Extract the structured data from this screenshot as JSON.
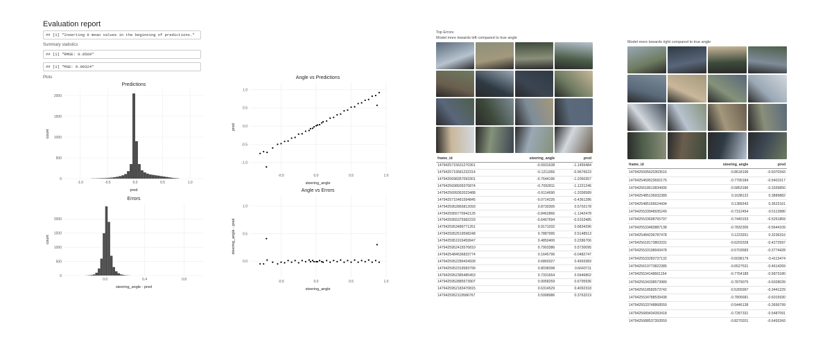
{
  "header": {
    "title": "Evaluation report"
  },
  "outputs": [
    "## [1] \"Inserting 0 mean values in the beginning of predictions.\"",
    "## [1] \"RMSE: 0.0569\"",
    "## [1] \"MSE: 0.00324\""
  ],
  "sections": {
    "summary": "Summary statistics",
    "plots": "Plots"
  },
  "charts": [
    {
      "type": "histogram",
      "title": "Predictions",
      "xlabel": "pred",
      "ylabel": "count",
      "color": "#4d4d4d",
      "xlim": [
        -1.3,
        1.25
      ],
      "ylim": [
        0,
        2150
      ],
      "xticks": [
        {
          "value": -1,
          "label": "-1.0"
        },
        -0.5,
        {
          "value": 0,
          "label": "0.0"
        },
        0.5,
        {
          "value": 1,
          "label": "1.0"
        }
      ],
      "yticks": [
        0,
        500,
        1000,
        1500,
        2000
      ],
      "bins": [
        -0.8,
        -0.75,
        -0.7,
        -0.65,
        -0.6,
        -0.55,
        -0.5,
        -0.45,
        -0.4,
        -0.35,
        -0.3,
        -0.25,
        -0.2,
        -0.15,
        -0.1,
        -0.05,
        0,
        0.05,
        0.1,
        0.15,
        0.2,
        0.25,
        0.3,
        0.35,
        0.4,
        0.45,
        0.5,
        0.55,
        0.6,
        0.65,
        0.7,
        0.75,
        0.8
      ],
      "counts": [
        5,
        5,
        8,
        10,
        12,
        15,
        20,
        25,
        35,
        45,
        60,
        80,
        110,
        180,
        350,
        2050,
        900,
        350,
        200,
        150,
        120,
        100,
        90,
        80,
        70,
        60,
        50,
        40,
        30,
        20,
        12,
        8
      ]
    },
    {
      "type": "histogram",
      "title": "Errors",
      "xlabel": "steering_angle - pred",
      "ylabel": "count",
      "color": "#4d4d4d",
      "xlim": [
        -0.42,
        1.0
      ],
      "ylim": [
        0,
        2550
      ],
      "xticks": [
        {
          "value": 0,
          "label": "0.0"
        },
        0.4,
        0.8
      ],
      "yticks": [
        0,
        500,
        1000,
        1500,
        2000
      ],
      "bins": [
        -0.2,
        -0.175,
        -0.15,
        -0.125,
        -0.1,
        -0.075,
        -0.05,
        -0.025,
        0,
        0.025,
        0.05,
        0.075,
        0.1,
        0.125,
        0.15,
        0.175,
        0.2,
        0.225,
        0.25
      ],
      "counts": [
        5,
        10,
        20,
        40,
        100,
        250,
        600,
        1500,
        2450,
        1900,
        700,
        300,
        150,
        80,
        40,
        20,
        10,
        5
      ]
    },
    {
      "type": "scatter",
      "title": "Angle vs Predictions",
      "xlabel": "steering_angle",
      "ylabel": "pred",
      "color": "#000000",
      "xlim": [
        -0.95,
        1.0
      ],
      "ylim": [
        -1.25,
        1.2
      ],
      "xticks": [
        -0.5,
        {
          "value": 0,
          "label": "0.0"
        },
        0.5,
        {
          "value": 1,
          "label": "1.0"
        }
      ],
      "yticks": [
        {
          "value": -1,
          "label": "-1.0"
        },
        -0.5,
        {
          "value": 0,
          "label": "0.0"
        },
        0.5,
        {
          "value": 1,
          "label": "1.0"
        }
      ],
      "x": [
        -0.8,
        -0.75,
        -0.7,
        -0.62,
        -0.55,
        -0.5,
        -0.45,
        -0.4,
        -0.35,
        -0.3,
        -0.25,
        -0.2,
        -0.15,
        -0.1,
        -0.08,
        -0.05,
        -0.03,
        0,
        0.02,
        0.05,
        0.08,
        0.1,
        0.15,
        0.2,
        0.25,
        0.3,
        0.35,
        0.4,
        0.45,
        0.5,
        0.55,
        0.6,
        0.65,
        0.7,
        0.75,
        0.8,
        0.85,
        0.9,
        -0.71,
        0.87
      ],
      "y": [
        -0.75,
        -0.7,
        -0.72,
        -0.6,
        -0.5,
        -0.48,
        -0.42,
        -0.41,
        -0.33,
        -0.31,
        -0.22,
        -0.21,
        -0.14,
        -0.12,
        -0.07,
        -0.06,
        -0.02,
        0.01,
        0.03,
        0.04,
        0.09,
        0.12,
        0.14,
        0.22,
        0.24,
        0.31,
        0.33,
        0.42,
        0.44,
        0.52,
        0.53,
        0.62,
        0.64,
        0.71,
        0.73,
        0.82,
        0.84,
        0.92,
        -1.12,
        0.57
      ]
    },
    {
      "type": "scatter",
      "title": "Angle vs Errors",
      "xlabel": "steering_angle",
      "ylabel": "steering_angle - pred",
      "color": "#000000",
      "xlim": [
        -0.95,
        1.0
      ],
      "ylim": [
        -0.3,
        1.2
      ],
      "xticks": [
        -0.5,
        {
          "value": 0,
          "label": "0.0"
        },
        0.5,
        {
          "value": 1,
          "label": "1.0"
        }
      ],
      "yticks": [
        {
          "value": 0,
          "label": "0.0"
        },
        0.5,
        {
          "value": 1,
          "label": "1.0"
        }
      ],
      "x": [
        -0.8,
        -0.75,
        -0.7,
        -0.62,
        -0.55,
        -0.5,
        -0.45,
        -0.4,
        -0.35,
        -0.3,
        -0.25,
        -0.2,
        -0.15,
        -0.1,
        -0.08,
        -0.05,
        -0.03,
        0,
        0.02,
        0.05,
        0.08,
        0.1,
        0.15,
        0.2,
        0.25,
        0.3,
        0.35,
        0.4,
        0.45,
        0.5,
        0.55,
        0.6,
        0.65,
        0.7,
        0.75,
        0.8,
        0.85,
        0.9,
        -0.71,
        0.87
      ],
      "y": [
        -0.05,
        -0.05,
        0.02,
        -0.02,
        -0.05,
        -0.02,
        -0.03,
        0.01,
        -0.02,
        0.01,
        -0.03,
        0.01,
        -0.01,
        0.02,
        -0.01,
        0.01,
        -0.01,
        -0.01,
        -0.01,
        0.01,
        -0.01,
        -0.02,
        0.01,
        -0.02,
        0.01,
        -0.01,
        0.02,
        -0.02,
        0.01,
        -0.02,
        0.02,
        -0.02,
        0.01,
        -0.01,
        0.02,
        -0.02,
        0.01,
        -0.02,
        0.41,
        0.3
      ]
    }
  ],
  "top_errors": {
    "title": "Top Errors",
    "left": {
      "caption": "Model more towards left compared to true angle",
      "columns": [
        "frame_id",
        "steering_angle",
        "pred"
      ],
      "rows": [
        [
          "1479425715631270361",
          "-0.0931638",
          "-1.1455484"
        ],
        [
          "1479425719581232314",
          "-0.1211066",
          "-0.9676623"
        ],
        [
          "1479425698357093301",
          "-0.7644196",
          "-1.2050357"
        ],
        [
          "1479425698939376874",
          "-0.7092811",
          "-1.1221246"
        ],
        [
          "1479425699362023488",
          "-0.6114690",
          "-1.2036589"
        ],
        [
          "1479425715481594845",
          "-0.0714226",
          "-0.4361286"
        ],
        [
          "1479425952865812093",
          "0.8730305",
          "0.5702178"
        ],
        [
          "1479425955770942125",
          "-0.8462866",
          "-1.1342478"
        ],
        [
          "1479425955375982229",
          "-0.6467694",
          "-0.9153485"
        ],
        [
          "1479425953489771261",
          "0.9171032",
          "0.6834296"
        ],
        [
          "1479425952519598248",
          "0.7887995",
          "0.5148513"
        ],
        [
          "1479425951919459947",
          "0.4850400",
          "0.2286706"
        ],
        [
          "1479425952415576810",
          "0.7903386",
          "0.5730095"
        ],
        [
          "1479425484636833774",
          "0.1645796",
          "-0.0482747"
        ],
        [
          "1479425952289434928",
          "0.6869327",
          "0.4993383"
        ],
        [
          "1479425952319583799",
          "0.8038398",
          "0.6643711"
        ],
        [
          "1479425952385485453",
          "0.7331654",
          "0.5946802"
        ],
        [
          "1479425952885573907",
          "0.9058259",
          "0.6795936"
        ],
        [
          "1479425952183470815",
          "0.6314529",
          "0.4092318"
        ],
        [
          "1479425952119586767",
          "0.5998986",
          "0.3763219"
        ]
      ]
    },
    "right": {
      "caption": "Model more towards right compared to true angle",
      "columns": [
        "frame_id",
        "steering_angle",
        "pred"
      ],
      "rows": [
        [
          "1479425695620303516",
          "-0.8618196",
          "-0.6070343"
        ],
        [
          "1479425469523692175",
          "-0.7790184",
          "-0.5401517"
        ],
        [
          "1479425618613834006",
          "-0.5853186",
          "-0.3335850"
        ],
        [
          "1479425485136932389",
          "0.1638122",
          "0.3889882"
        ],
        [
          "1479425485166624434",
          "0.1389343",
          "0.3622161"
        ],
        [
          "1479425533948935249",
          "-0.7312454",
          "-0.5113980"
        ],
        [
          "1479425533698765797",
          "-0.7440153",
          "-0.5251869"
        ],
        [
          "1479425533483887138",
          "-0.7832305",
          "-0.5644109"
        ],
        [
          "1479425484236787478",
          "0.1223351",
          "0.3236316"
        ],
        [
          "1479425618173803331",
          "-0.6203328",
          "-0.4272597"
        ],
        [
          "1479425533198943478",
          "-0.5703683",
          "-0.3774428"
        ],
        [
          "1479425533283737132",
          "-0.6038179",
          "-0.4113474"
        ],
        [
          "1479425619773822385",
          "-0.6527531",
          "-0.4614269"
        ],
        [
          "1479425534148661154",
          "-0.7764189",
          "-0.5873180"
        ],
        [
          "1479425534338573989",
          "-0.7879075",
          "-0.6028039"
        ],
        [
          "1479425618583573742",
          "-0.5265997",
          "-0.3441229"
        ],
        [
          "1479425534788539438",
          "-0.7805681",
          "-0.6015930"
        ],
        [
          "1479425533748868559",
          "-0.5446138",
          "-0.3656799"
        ],
        [
          "1479425689434393418",
          "-0.7287331",
          "-0.5487091"
        ],
        [
          "1479425688537393559",
          "-0.8270201",
          "-0.6493343"
        ]
      ]
    }
  }
}
